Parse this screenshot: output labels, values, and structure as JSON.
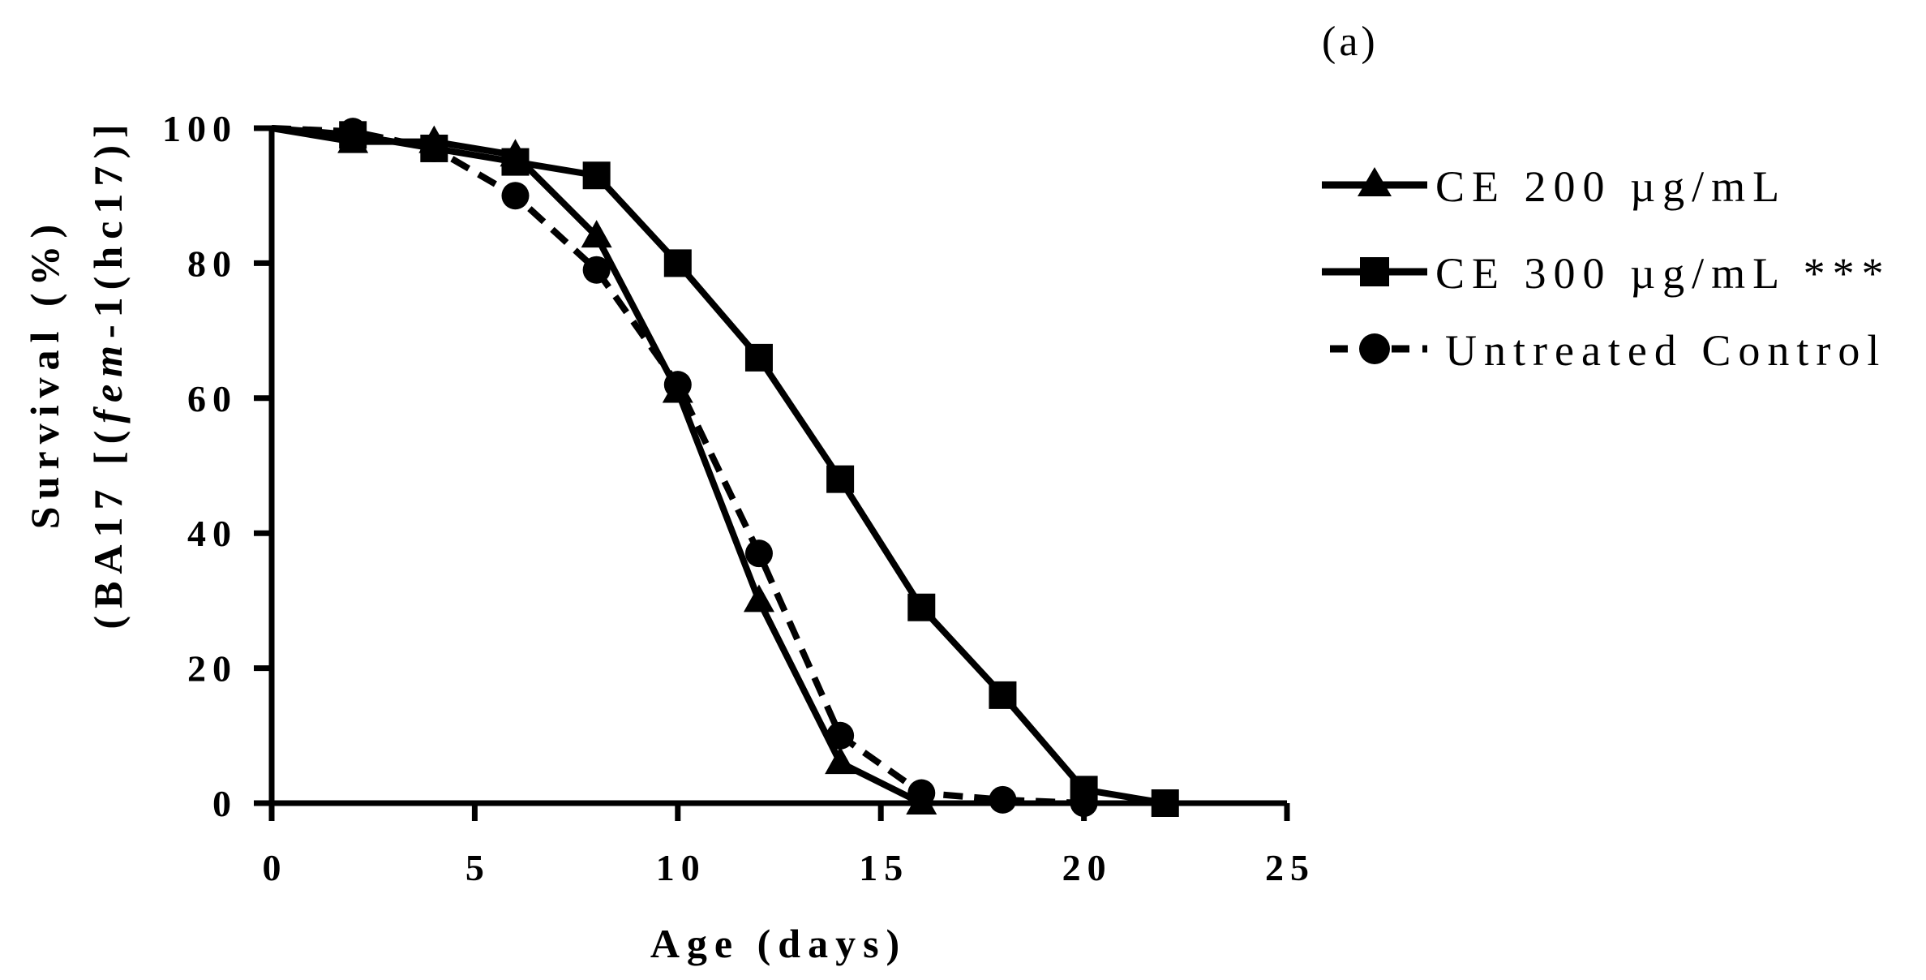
{
  "panel_label": "(a)",
  "chart_data": {
    "type": "line",
    "title": "",
    "xlabel": "Age (days)",
    "ylabel_line1": "Survival (%)",
    "ylabel_line2_prefix": "(BA17 [(",
    "ylabel_line2_italic": "fem",
    "ylabel_line2_suffix": "-1(hc17)]",
    "xlim": [
      0,
      25
    ],
    "ylim": [
      0,
      100
    ],
    "xticks": [
      0,
      5,
      10,
      15,
      20,
      25
    ],
    "yticks": [
      0,
      20,
      40,
      60,
      80,
      100
    ],
    "grid": false,
    "legend_position": "top-right",
    "series": [
      {
        "name": "CE 200 µg/mL",
        "marker": "triangle",
        "line_style": "solid",
        "color": "#000000",
        "x": [
          0,
          2,
          4,
          6,
          8,
          10,
          12,
          14,
          16
        ],
        "y": [
          100,
          98,
          98,
          96,
          84,
          61,
          30,
          6,
          0
        ]
      },
      {
        "name": "CE 300 µg/mL ***",
        "marker": "square",
        "line_style": "solid",
        "color": "#000000",
        "x": [
          0,
          2,
          4,
          6,
          8,
          10,
          12,
          14,
          16,
          18,
          20,
          22
        ],
        "y": [
          100,
          99,
          97,
          95,
          93,
          80,
          66,
          48,
          29,
          16,
          2,
          0
        ]
      },
      {
        "name": "Untreated Control",
        "marker": "circle",
        "line_style": "dashed",
        "color": "#000000",
        "x": [
          0,
          2,
          4,
          6,
          8,
          10,
          12,
          14,
          16,
          18,
          20
        ],
        "y": [
          100,
          99.5,
          97,
          90,
          79,
          62,
          37,
          10,
          1.5,
          0.5,
          0
        ]
      }
    ]
  }
}
